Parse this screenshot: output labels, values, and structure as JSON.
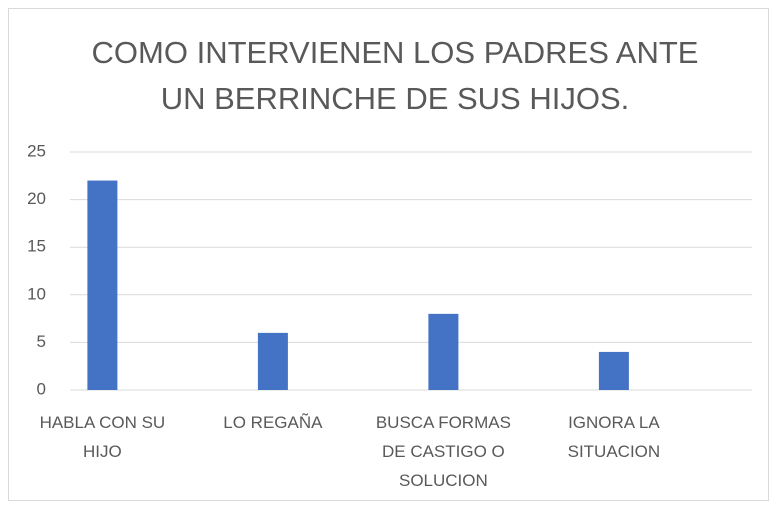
{
  "chart_data": {
    "type": "bar",
    "title": "COMO INTERVIENEN LOS PADRES ANTE UN BERRINCHE DE SUS HIJOS.",
    "categories": [
      "HABLA CON SU HIJO",
      "LO REGAÑA",
      "BUSCA FORMAS DE CASTIGO O SOLUCION",
      "IGNORA LA SITUACION"
    ],
    "values": [
      22,
      6,
      8,
      4
    ],
    "color": "#4472c4",
    "ylim": [
      0,
      25
    ],
    "yticks": [
      0,
      5,
      10,
      15,
      20,
      25
    ],
    "grid": true
  }
}
